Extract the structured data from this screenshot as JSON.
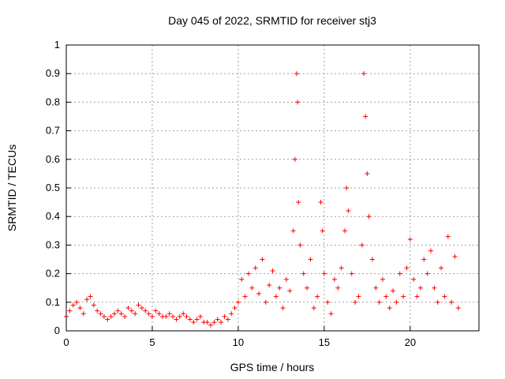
{
  "chart_data": {
    "type": "scatter",
    "title": "Day 045 of 2022, SRMTID for receiver stj3",
    "xlabel": "GPS time / hours",
    "ylabel": "SRMTID / TECUs",
    "xlim": [
      0,
      24
    ],
    "ylim": [
      0,
      1
    ],
    "xticks": [
      0,
      5,
      10,
      15,
      20
    ],
    "yticks": [
      0,
      0.1,
      0.2,
      0.3,
      0.4,
      0.5,
      0.6,
      0.7,
      0.8,
      0.9,
      1
    ],
    "grid": true,
    "marker": "+",
    "color": "#ff0000",
    "series": [
      {
        "name": "SRMTID",
        "x": [
          0.0,
          0.2,
          0.4,
          0.6,
          0.8,
          1.0,
          1.2,
          1.4,
          1.6,
          1.8,
          2.0,
          2.2,
          2.4,
          2.6,
          2.8,
          3.0,
          3.2,
          3.4,
          3.6,
          3.8,
          4.0,
          4.2,
          4.4,
          4.6,
          4.8,
          5.0,
          5.2,
          5.4,
          5.6,
          5.8,
          6.0,
          6.2,
          6.4,
          6.6,
          6.8,
          7.0,
          7.2,
          7.4,
          7.6,
          7.8,
          8.0,
          8.2,
          8.4,
          8.6,
          8.8,
          9.0,
          9.2,
          9.4,
          9.6,
          9.8,
          10.0,
          10.2,
          10.4,
          10.6,
          10.8,
          11.0,
          11.2,
          11.4,
          11.6,
          11.8,
          12.0,
          12.2,
          12.4,
          12.6,
          12.8,
          13.0,
          13.2,
          13.3,
          13.4,
          13.45,
          13.5,
          13.6,
          13.8,
          14.0,
          14.2,
          14.4,
          14.6,
          14.8,
          14.9,
          15.0,
          15.2,
          15.4,
          15.6,
          15.8,
          16.0,
          16.2,
          16.3,
          16.4,
          16.6,
          16.8,
          17.0,
          17.2,
          17.3,
          17.4,
          17.5,
          17.6,
          17.8,
          18.0,
          18.2,
          18.4,
          18.6,
          18.8,
          19.0,
          19.2,
          19.4,
          19.6,
          19.8,
          20.0,
          20.2,
          20.4,
          20.6,
          20.8,
          21.0,
          21.2,
          21.4,
          21.6,
          21.8,
          22.0,
          22.2,
          22.4,
          22.6,
          22.8
        ],
        "y": [
          0.05,
          0.07,
          0.09,
          0.1,
          0.08,
          0.06,
          0.11,
          0.12,
          0.09,
          0.07,
          0.06,
          0.05,
          0.04,
          0.05,
          0.06,
          0.07,
          0.06,
          0.05,
          0.08,
          0.07,
          0.06,
          0.09,
          0.08,
          0.07,
          0.06,
          0.05,
          0.07,
          0.06,
          0.05,
          0.05,
          0.06,
          0.05,
          0.04,
          0.05,
          0.06,
          0.05,
          0.04,
          0.03,
          0.04,
          0.05,
          0.03,
          0.03,
          0.02,
          0.03,
          0.04,
          0.03,
          0.05,
          0.04,
          0.06,
          0.08,
          0.1,
          0.18,
          0.12,
          0.2,
          0.15,
          0.22,
          0.13,
          0.25,
          0.1,
          0.16,
          0.21,
          0.12,
          0.15,
          0.08,
          0.18,
          0.14,
          0.35,
          0.6,
          0.9,
          0.8,
          0.45,
          0.3,
          0.2,
          0.15,
          0.25,
          0.08,
          0.12,
          0.45,
          0.35,
          0.2,
          0.1,
          0.06,
          0.18,
          0.15,
          0.22,
          0.35,
          0.5,
          0.42,
          0.2,
          0.1,
          0.12,
          0.3,
          0.9,
          0.75,
          0.55,
          0.4,
          0.25,
          0.15,
          0.1,
          0.18,
          0.12,
          0.08,
          0.14,
          0.1,
          0.2,
          0.12,
          0.22,
          0.32,
          0.18,
          0.12,
          0.15,
          0.25,
          0.2,
          0.28,
          0.15,
          0.1,
          0.22,
          0.12,
          0.33,
          0.1,
          0.26,
          0.08
        ]
      }
    ]
  }
}
